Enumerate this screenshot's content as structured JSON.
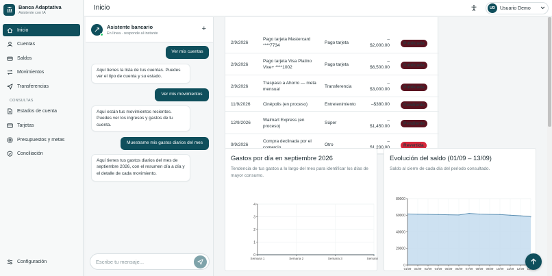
{
  "brand": {
    "title": "Banca Adaptativa",
    "subtitle": "Asistente con IA"
  },
  "sidebar": {
    "items": [
      {
        "label": "Inicio",
        "icon": "home-icon"
      },
      {
        "label": "Cuentas",
        "icon": "user-icon"
      },
      {
        "label": "Saldos",
        "icon": "wallet-icon"
      },
      {
        "label": "Movimientos",
        "icon": "arrows-icon"
      },
      {
        "label": "Transferencias",
        "icon": "send-icon"
      }
    ],
    "section_label": "CONSULTAS",
    "consult_items": [
      {
        "label": "Estados de cuenta",
        "icon": "document-icon"
      },
      {
        "label": "Tarjetas",
        "icon": "card-icon"
      },
      {
        "label": "Presupuestos y metas",
        "icon": "target-icon"
      },
      {
        "label": "Conciliación",
        "icon": "shield-check-icon"
      }
    ],
    "settings_label": "Configuración"
  },
  "header": {
    "title": "Inicio",
    "user_initials": "UD",
    "user_name": "Usuario Demo"
  },
  "chat": {
    "title": "Asistente bancario",
    "status": "En línea · responde al instante",
    "messages": [
      {
        "role": "user",
        "text": "Ver mis cuentas"
      },
      {
        "role": "bot",
        "text": "Aquí tienes la lista de tus cuentas. Puedes ver el tipo de cuenta y su estado."
      },
      {
        "role": "user",
        "text": "Ver mis movimientos"
      },
      {
        "role": "bot",
        "text": "Aquí están tus movimientos recientes. Puedes ver los ingresos y gastos de tu cuenta."
      },
      {
        "role": "user",
        "text": "Muestrame mis gastos diarios del mes"
      },
      {
        "role": "bot",
        "text": "Aquí tienes tus gastos diarios del mes de septiembre 2026, con el resumen día a día y el detalle de cada movimiento."
      }
    ],
    "input_placeholder": "Escribe tu mensaje..."
  },
  "transactions": [
    {
      "date": "2/9/2026",
      "description": "Pago tarjeta Mastercard ****7734",
      "category": "Pago tarjeta",
      "amount_sign": "–",
      "amount": "$2,000.00",
      "status": "Publicada",
      "status_color": "#5a1320"
    },
    {
      "date": "2/9/2026",
      "description": "Pago tarjeta Visa Platino Vive+ ****1002",
      "category": "Pago tarjeta",
      "amount_sign": "–",
      "amount": "$6,500.00",
      "status": "Publicada",
      "status_color": "#5a1320"
    },
    {
      "date": "2/9/2026",
      "description": "Traspaso a Ahorro — meta mensual",
      "category": "Transferencia",
      "amount_sign": "–",
      "amount": "$3,000.00",
      "status": "Publicada",
      "status_color": "#5a1320"
    },
    {
      "date": "11/9/2026",
      "description": "Cinépolis (en proceso)",
      "category": "Entretenimiento",
      "amount_sign": "",
      "amount": "–$380.00",
      "status": "Pendiente",
      "status_color": "#5a1320"
    },
    {
      "date": "12/9/2026",
      "description": "Walmart Express (en proceso)",
      "category": "Súper",
      "amount_sign": "–",
      "amount": "$1,450.00",
      "status": "Pendiente",
      "status_color": "#5a1320"
    },
    {
      "date": "9/9/2026",
      "description": "Compra declinada por el comercio",
      "category": "Otro",
      "amount_sign": "–",
      "amount": "$1,200.00",
      "status": "Revertida",
      "status_color": "#d6283b"
    }
  ],
  "chart_data": [
    {
      "type": "line",
      "title": "Gastos por día en septiembre 2026",
      "subtitle": "Tendencia de tus gastos a lo largo del mes para identificar los días de mayor consumo.",
      "categories": [
        "Semana 1",
        "Semana 2",
        "Semana 3",
        "Semana 4"
      ],
      "values": [
        0,
        0,
        0,
        0
      ],
      "yticks": [
        0,
        1,
        2,
        3,
        4
      ],
      "ylim": [
        0,
        4
      ],
      "color": "#2c6e8a"
    },
    {
      "type": "area",
      "title": "Evolución del saldo (01/09 – 13/09)",
      "subtitle": "Saldo al cierre de cada día del periodo consultado.",
      "categories": [
        "01/09",
        "02/09",
        "03/09",
        "04/09",
        "05/09",
        "06/09",
        "07/09",
        "08/09",
        "09/09",
        "10/09",
        "11/09",
        "12/09",
        "13/09"
      ],
      "values": [
        61500,
        61200,
        61000,
        60800,
        60500,
        60300,
        62200,
        61300,
        61000,
        60800,
        60000,
        59300,
        58000
      ],
      "yticks": [
        0,
        20000,
        40000,
        60000,
        80000
      ],
      "ylim": [
        0,
        80000
      ],
      "color": "#5b8fb3",
      "fill": "#c4dcef"
    }
  ]
}
